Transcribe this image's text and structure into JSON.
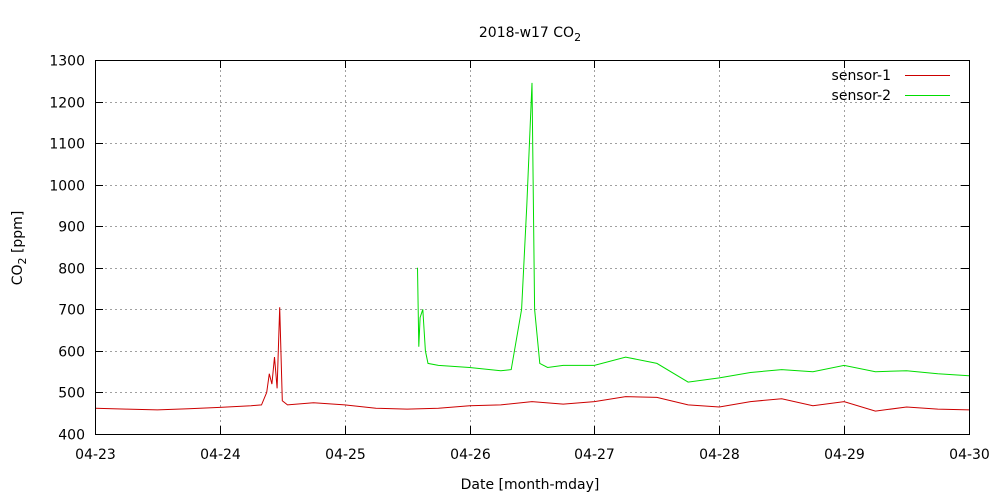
{
  "chart_data": {
    "type": "line",
    "title": "2018-w17 CO",
    "title_sub": "2",
    "xlabel": "Date [month-mday]",
    "ylabel_main": "CO",
    "ylabel_sub": "2",
    "ylabel_unit": " [ppm]",
    "ylim": [
      400,
      1300
    ],
    "yticks": [
      400,
      500,
      600,
      700,
      800,
      900,
      1000,
      1100,
      1200,
      1300
    ],
    "xlim": [
      "2018-04-23",
      "2018-04-30"
    ],
    "xticks": [
      "04-23",
      "04-24",
      "04-25",
      "04-26",
      "04-27",
      "04-28",
      "04-29",
      "04-30"
    ],
    "grid": true,
    "legend": "top-right",
    "series": [
      {
        "name": "sensor-1",
        "color": "#cc0000",
        "x": [
          "2018-04-23 00:00",
          "2018-04-23 06:00",
          "2018-04-23 12:00",
          "2018-04-23 18:00",
          "2018-04-24 00:00",
          "2018-04-24 06:00",
          "2018-04-24 08:00",
          "2018-04-24 09:00",
          "2018-04-24 09:30",
          "2018-04-24 10:00",
          "2018-04-24 10:30",
          "2018-04-24 11:00",
          "2018-04-24 11:30",
          "2018-04-24 12:00",
          "2018-04-24 13:00",
          "2018-04-24 18:00",
          "2018-04-25 00:00",
          "2018-04-25 06:00",
          "2018-04-25 12:00",
          "2018-04-25 18:00",
          "2018-04-26 00:00",
          "2018-04-26 06:00",
          "2018-04-26 12:00",
          "2018-04-26 18:00",
          "2018-04-27 00:00",
          "2018-04-27 06:00",
          "2018-04-27 12:00",
          "2018-04-27 18:00",
          "2018-04-28 00:00",
          "2018-04-28 06:00",
          "2018-04-28 12:00",
          "2018-04-28 18:00",
          "2018-04-29 00:00",
          "2018-04-29 06:00",
          "2018-04-29 12:00",
          "2018-04-29 18:00",
          "2018-04-30 00:00"
        ],
        "y": [
          462,
          460,
          458,
          461,
          464,
          468,
          470,
          500,
          545,
          520,
          585,
          510,
          705,
          480,
          470,
          475,
          470,
          462,
          460,
          462,
          468,
          470,
          478,
          472,
          478,
          490,
          488,
          470,
          465,
          478,
          485,
          468,
          478,
          455,
          465,
          460,
          458
        ]
      },
      {
        "name": "sensor-2",
        "color": "#00dd00",
        "x": [
          "2018-04-25 14:00",
          "2018-04-25 14:15",
          "2018-04-25 14:30",
          "2018-04-25 15:00",
          "2018-04-25 15:15",
          "2018-04-25 15:30",
          "2018-04-25 16:00",
          "2018-04-25 18:00",
          "2018-04-26 00:00",
          "2018-04-26 06:00",
          "2018-04-26 08:00",
          "2018-04-26 10:00",
          "2018-04-26 11:00",
          "2018-04-26 12:00",
          "2018-04-26 12:30",
          "2018-04-26 13:30",
          "2018-04-26 15:00",
          "2018-04-26 18:00",
          "2018-04-27 00:00",
          "2018-04-27 06:00",
          "2018-04-27 12:00",
          "2018-04-27 18:00",
          "2018-04-28 00:00",
          "2018-04-28 06:00",
          "2018-04-28 12:00",
          "2018-04-28 18:00",
          "2018-04-29 00:00",
          "2018-04-29 06:00",
          "2018-04-29 12:00",
          "2018-04-29 18:00",
          "2018-04-30 00:00"
        ],
        "y": [
          800,
          610,
          680,
          700,
          650,
          600,
          570,
          565,
          560,
          552,
          555,
          700,
          950,
          1245,
          700,
          570,
          560,
          565,
          565,
          585,
          570,
          525,
          535,
          548,
          555,
          550,
          565,
          550,
          552,
          545,
          540
        ]
      }
    ]
  }
}
